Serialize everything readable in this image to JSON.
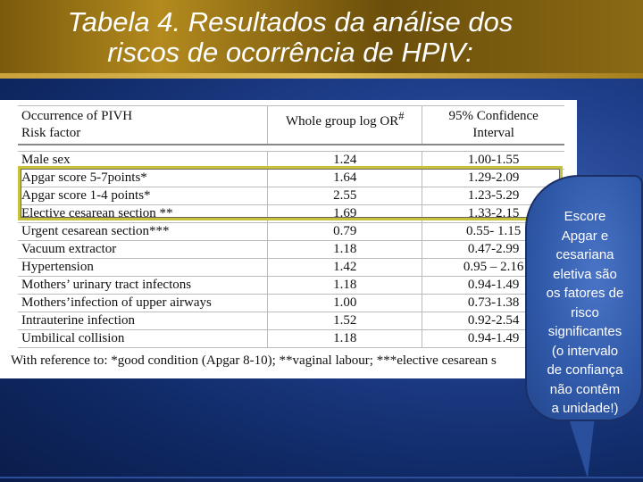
{
  "slide": {
    "title_line1": "Tabela 4. Resultados da análise dos",
    "title_line2": "riscos de ocorrência de HPIV:"
  },
  "table": {
    "header": {
      "col1_line1": "Occurrence of PIVH",
      "col1_line2": "Risk factor",
      "col2_line1": "Whole group log OR",
      "col2_sup": "#",
      "col3_line1": "95% Confidence",
      "col3_line2": "Interval"
    },
    "rows": [
      {
        "factor": "Male sex",
        "log_or": "1.24",
        "ci": "1.00-1.55"
      },
      {
        "factor": "Apgar score 5-7points*",
        "log_or": "1.64",
        "ci": "1.29-2.09"
      },
      {
        "factor": "Apgar score 1-4 points*",
        "log_or": "2.55",
        "ci": "1.23-5.29"
      },
      {
        "factor": "Elective cesarean section **",
        "log_or": "1.69",
        "ci": "1.33-2.15"
      },
      {
        "factor": "Urgent cesarean section***",
        "log_or": "0.79",
        "ci": "0.55- 1.15"
      },
      {
        "factor": "Vacuum extractor",
        "log_or": "1.18",
        "ci": "0.47-2.99"
      },
      {
        "factor": "Hypertension",
        "log_or": "1.42",
        "ci": "0.95 – 2.16"
      },
      {
        "factor": "Mothers’ urinary tract infectons",
        "log_or": "1.18",
        "ci": "0.94-1.49"
      },
      {
        "factor": "Mothers’infection of upper airways",
        "log_or": "1.00",
        "ci": "0.73-1.38"
      },
      {
        "factor": "Intrauterine infection",
        "log_or": "1.52",
        "ci": "0.92-2.54"
      },
      {
        "factor": "Umbilical collision",
        "log_or": "1.18",
        "ci": "0.94-1.49"
      }
    ],
    "footnote": "With reference to: *good condition (Apgar 8-10); **vaginal labour; ***elective cesarean s"
  },
  "callout": {
    "text": "Escore\nApgar e\ncesariana\neletiva são\nos fatores de\nrisco\nsignificantes\n(o intervalo\nde confiança\nnão  contêm\na unidade!)"
  },
  "colors": {
    "background": "#1f3f8c",
    "title_band": "#8a6a14",
    "highlight_border": "#c8c23a",
    "callout_fill": "#3a64b8"
  }
}
